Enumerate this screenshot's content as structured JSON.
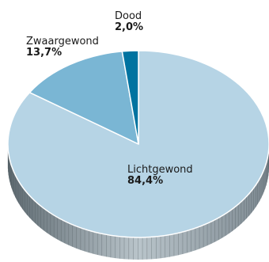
{
  "chart_data": {
    "type": "pie",
    "style": "3d",
    "categories": [
      "Lichtgewond",
      "Zwaargewond",
      "Dood"
    ],
    "values": [
      84.4,
      13.7,
      2.0
    ],
    "value_labels": [
      "84,4%",
      "13,7%",
      "2,0%"
    ],
    "colors": [
      "#b6d4e5",
      "#7ab6d4",
      "#0073a0"
    ],
    "side_colors": [
      "#a6b3bb",
      "#6b97ad",
      "#005a7c"
    ],
    "title": "",
    "legend": "none"
  }
}
